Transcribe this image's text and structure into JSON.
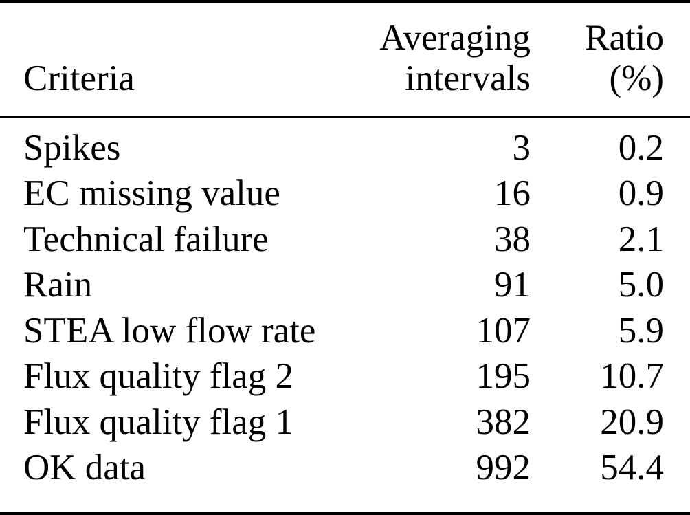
{
  "colors": {
    "background": "#ffffff",
    "text": "#000000",
    "rule": "#000000"
  },
  "table": {
    "header": {
      "criteria": "Criteria",
      "intervals_line1": "Averaging",
      "intervals_line2": "intervals",
      "ratio_line1": "Ratio",
      "ratio_line2": "(%)"
    },
    "rows": [
      {
        "criteria": "Spikes",
        "intervals": "3",
        "ratio": "0.2"
      },
      {
        "criteria": "EC missing value",
        "intervals": "16",
        "ratio": "0.9"
      },
      {
        "criteria": "Technical failure",
        "intervals": "38",
        "ratio": "2.1"
      },
      {
        "criteria": "Rain",
        "intervals": "91",
        "ratio": "5.0"
      },
      {
        "criteria": "STEA low flow rate",
        "intervals": "107",
        "ratio": "5.9"
      },
      {
        "criteria": "Flux quality flag 2",
        "intervals": "195",
        "ratio": "10.7"
      },
      {
        "criteria": "Flux quality flag 1",
        "intervals": "382",
        "ratio": "20.9"
      },
      {
        "criteria": "OK data",
        "intervals": "992",
        "ratio": "54.4"
      }
    ]
  }
}
